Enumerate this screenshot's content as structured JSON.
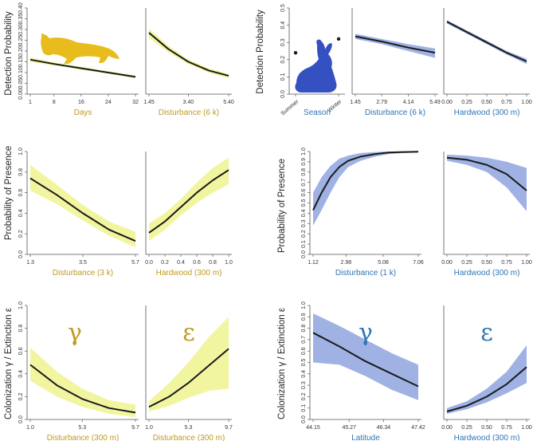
{
  "colors": {
    "marten_label": "#C09A20",
    "hare_label": "#2E75B6",
    "marten_band": "#F2F5A0",
    "hare_band": "#9FB2E3",
    "line": "#1A1A1A"
  },
  "ylabels": {
    "detection": "Detection Probability",
    "presence": "Probability of Presence",
    "colext": "Colonization γ / Extinction ε"
  },
  "greek": {
    "gamma": "γ",
    "epsilon": "ε"
  },
  "silhouettes": {
    "marten": "marten-silhouette",
    "hare": "hare-silhouette"
  },
  "chart_data": [
    {
      "id": "m_days",
      "type": "line",
      "species": "marten",
      "xlabel": "Days",
      "xlim": [
        1,
        32
      ],
      "ylim": [
        0,
        0.4
      ],
      "xticks": [
        1,
        8,
        16,
        24,
        32
      ],
      "xtick_labels": [
        "1",
        "8",
        "16",
        "24",
        "32"
      ],
      "yticks": [
        0,
        0.05,
        0.1,
        0.15,
        0.2,
        0.25,
        0.3,
        0.35,
        0.4
      ],
      "ytick_labels": [
        "0.00",
        "0.05",
        "0.10",
        "0.15",
        "0.20",
        "0.25",
        "0.30",
        "0.35",
        "0.40"
      ],
      "x": [
        1,
        8,
        16,
        24,
        32
      ],
      "y": [
        0.16,
        0.14,
        0.12,
        0.1,
        0.08
      ],
      "lower": [
        0.15,
        0.133,
        0.113,
        0.094,
        0.074
      ],
      "upper": [
        0.17,
        0.147,
        0.127,
        0.106,
        0.086
      ]
    },
    {
      "id": "m_dist6",
      "type": "line",
      "species": "marten",
      "xlabel": "Disturbance (6 k)",
      "xlim": [
        1.45,
        5.4
      ],
      "ylim": [
        0,
        0.4
      ],
      "xticks": [
        1.45,
        3.4,
        5.4
      ],
      "xtick_labels": [
        "1.45",
        "3.40",
        "5.40"
      ],
      "x": [
        1.45,
        2.4,
        3.4,
        4.4,
        5.4
      ],
      "y": [
        0.285,
        0.21,
        0.15,
        0.11,
        0.085
      ],
      "lower": [
        0.26,
        0.195,
        0.14,
        0.1,
        0.075
      ],
      "upper": [
        0.305,
        0.225,
        0.16,
        0.12,
        0.095
      ]
    },
    {
      "id": "h_season",
      "type": "scatter",
      "species": "hare",
      "xlabel": "Season",
      "ylim": [
        0,
        0.5
      ],
      "categories": [
        "Summer",
        "Winter"
      ],
      "yticks": [
        0,
        0.1,
        0.2,
        0.3,
        0.4,
        0.5
      ],
      "ytick_labels": [
        "0.0",
        "0.1",
        "0.2",
        "0.3",
        "0.4",
        "0.5"
      ],
      "values": [
        0.24,
        0.32
      ],
      "lower": [
        0.23,
        0.31
      ],
      "upper": [
        0.25,
        0.33
      ]
    },
    {
      "id": "h_dist6",
      "type": "line",
      "species": "hare",
      "xlabel": "Disturbance (6 k)",
      "xlim": [
        1.45,
        5.49
      ],
      "ylim": [
        0,
        0.5
      ],
      "xticks": [
        1.45,
        2.79,
        4.14,
        5.49
      ],
      "xtick_labels": [
        "1.45",
        "2.79",
        "4.14",
        "5.49"
      ],
      "x": [
        1.45,
        2.79,
        4.14,
        5.49
      ],
      "y": [
        0.335,
        0.305,
        0.27,
        0.24
      ],
      "lower": [
        0.32,
        0.29,
        0.25,
        0.21
      ],
      "upper": [
        0.35,
        0.32,
        0.29,
        0.265
      ]
    },
    {
      "id": "h_hard_det",
      "type": "line",
      "species": "hare",
      "xlabel": "Hardwood (300 m)",
      "xlim": [
        0,
        1
      ],
      "ylim": [
        0,
        0.5
      ],
      "xticks": [
        0,
        0.25,
        0.5,
        0.75,
        1
      ],
      "xtick_labels": [
        "0.00",
        "0.25",
        "0.50",
        "0.75",
        "1.00"
      ],
      "x": [
        0,
        0.25,
        0.5,
        0.75,
        1
      ],
      "y": [
        0.42,
        0.36,
        0.3,
        0.24,
        0.19
      ],
      "lower": [
        0.41,
        0.35,
        0.29,
        0.23,
        0.175
      ],
      "upper": [
        0.43,
        0.37,
        0.31,
        0.25,
        0.205
      ]
    },
    {
      "id": "m_dist3",
      "type": "line",
      "species": "marten",
      "xlabel": "Disturbance (3 k)",
      "xlim": [
        1.3,
        5.7
      ],
      "ylim": [
        0,
        1
      ],
      "xticks": [
        1.3,
        3.5,
        5.7
      ],
      "xtick_labels": [
        "1.3",
        "3.5",
        "5.7"
      ],
      "yticks": [
        0,
        0.2,
        0.4,
        0.6,
        0.8,
        1
      ],
      "ytick_labels": [
        "0.0",
        "0.2",
        "0.4",
        "0.6",
        "0.8",
        "1.0"
      ],
      "x": [
        1.3,
        2.4,
        3.5,
        4.6,
        5.7
      ],
      "y": [
        0.74,
        0.58,
        0.4,
        0.24,
        0.13
      ],
      "lower": [
        0.62,
        0.49,
        0.33,
        0.18,
        0.07
      ],
      "upper": [
        0.87,
        0.68,
        0.48,
        0.32,
        0.22
      ]
    },
    {
      "id": "m_hard_pres",
      "type": "line",
      "species": "marten",
      "xlabel": "Hardwood (300 m)",
      "xlim": [
        0,
        1
      ],
      "ylim": [
        0,
        1
      ],
      "xticks": [
        0,
        0.2,
        0.4,
        0.6,
        0.8,
        1
      ],
      "xtick_labels": [
        "0.0",
        "0.2",
        "0.4",
        "0.6",
        "0.8",
        "1.0"
      ],
      "x": [
        0,
        0.2,
        0.4,
        0.6,
        0.8,
        1
      ],
      "y": [
        0.21,
        0.32,
        0.46,
        0.6,
        0.72,
        0.82
      ],
      "lower": [
        0.13,
        0.24,
        0.38,
        0.5,
        0.6,
        0.68
      ],
      "upper": [
        0.3,
        0.4,
        0.54,
        0.7,
        0.84,
        0.94
      ]
    },
    {
      "id": "h_dist1",
      "type": "line",
      "species": "hare",
      "xlabel": "Disturbance (1 k)",
      "xlim": [
        1.12,
        7.06
      ],
      "ylim": [
        0,
        1
      ],
      "xticks": [
        1.12,
        2.98,
        5.08,
        7.06
      ],
      "xtick_labels": [
        "1.12",
        "2.98",
        "5.08",
        "7.06"
      ],
      "yticks": [
        0,
        0.1,
        0.2,
        0.3,
        0.4,
        0.5,
        0.6,
        0.7,
        0.8,
        0.9,
        1
      ],
      "ytick_labels": [
        "0.0",
        "0.1",
        "0.2",
        "0.3",
        "0.4",
        "0.5",
        "0.6",
        "0.7",
        "0.8",
        "0.9",
        "1.0"
      ],
      "x": [
        1.12,
        1.6,
        2.1,
        2.6,
        3.1,
        3.8,
        4.6,
        5.4,
        6.2,
        7.06
      ],
      "y": [
        0.43,
        0.6,
        0.75,
        0.85,
        0.91,
        0.95,
        0.975,
        0.99,
        0.995,
        0.998
      ],
      "lower": [
        0.28,
        0.43,
        0.6,
        0.75,
        0.85,
        0.91,
        0.95,
        0.975,
        0.985,
        0.99
      ],
      "upper": [
        0.6,
        0.75,
        0.86,
        0.93,
        0.96,
        0.985,
        0.995,
        1,
        1,
        1
      ]
    },
    {
      "id": "h_hard_pres",
      "type": "line",
      "species": "hare",
      "xlabel": "Hardwood (300 m)",
      "xlim": [
        0,
        1
      ],
      "ylim": [
        0,
        1
      ],
      "xticks": [
        0,
        0.25,
        0.5,
        0.75,
        1
      ],
      "xtick_labels": [
        "0.00",
        "0.25",
        "0.50",
        "0.75",
        "1.00"
      ],
      "x": [
        0,
        0.25,
        0.5,
        0.75,
        1
      ],
      "y": [
        0.94,
        0.92,
        0.87,
        0.78,
        0.62
      ],
      "lower": [
        0.91,
        0.87,
        0.8,
        0.65,
        0.42
      ],
      "upper": [
        0.97,
        0.96,
        0.94,
        0.9,
        0.84
      ]
    },
    {
      "id": "m_col",
      "type": "line",
      "species": "marten",
      "greek": "gamma",
      "xlabel": "Disturbance (300 m)",
      "xlim": [
        1,
        9.7
      ],
      "ylim": [
        0,
        1
      ],
      "xticks": [
        1,
        5.3,
        9.7
      ],
      "xtick_labels": [
        "1.0",
        "5.3",
        "9.7"
      ],
      "yticks": [
        0,
        0.2,
        0.4,
        0.6,
        0.8,
        1
      ],
      "ytick_labels": [
        "0.0",
        "0.2",
        "0.4",
        "0.6",
        "0.8",
        "1.0"
      ],
      "x": [
        1,
        3.2,
        5.3,
        7.5,
        9.7
      ],
      "y": [
        0.48,
        0.3,
        0.18,
        0.1,
        0.06
      ],
      "lower": [
        0.34,
        0.2,
        0.11,
        0.05,
        0.02
      ],
      "upper": [
        0.63,
        0.42,
        0.27,
        0.17,
        0.13
      ]
    },
    {
      "id": "m_ext",
      "type": "line",
      "species": "marten",
      "greek": "epsilon",
      "xlabel": "Disturbance (300 m)",
      "xlim": [
        1,
        9.7
      ],
      "ylim": [
        0,
        1
      ],
      "xticks": [
        1,
        5.3,
        9.7
      ],
      "xtick_labels": [
        "1.0",
        "5.3",
        "9.7"
      ],
      "x": [
        1,
        3.2,
        5.3,
        7.5,
        9.7
      ],
      "y": [
        0.11,
        0.2,
        0.32,
        0.47,
        0.62
      ],
      "lower": [
        0.07,
        0.12,
        0.19,
        0.25,
        0.27
      ],
      "upper": [
        0.16,
        0.32,
        0.5,
        0.72,
        0.9
      ]
    },
    {
      "id": "h_col",
      "type": "line",
      "species": "hare",
      "greek": "gamma",
      "xlabel": "Latitude",
      "xlim": [
        44.15,
        47.42
      ],
      "ylim": [
        0,
        1
      ],
      "xticks": [
        44.15,
        45.27,
        46.34,
        47.42
      ],
      "xtick_labels": [
        "44.15",
        "45.27",
        "46.34",
        "47.42"
      ],
      "yticks": [
        0,
        0.1,
        0.2,
        0.3,
        0.4,
        0.5,
        0.6,
        0.7,
        0.8,
        0.9,
        1
      ],
      "ytick_labels": [
        "0.0",
        "0.1",
        "0.2",
        "0.3",
        "0.4",
        "0.5",
        "0.6",
        "0.7",
        "0.8",
        "0.9",
        "1.0"
      ],
      "x": [
        44.15,
        44.97,
        45.78,
        46.6,
        47.42
      ],
      "y": [
        0.76,
        0.64,
        0.51,
        0.4,
        0.29
      ],
      "lower": [
        0.5,
        0.48,
        0.38,
        0.26,
        0.17
      ],
      "upper": [
        0.93,
        0.82,
        0.7,
        0.58,
        0.48
      ]
    },
    {
      "id": "h_ext",
      "type": "line",
      "species": "hare",
      "greek": "epsilon",
      "xlabel": "Hardwood (300 m)",
      "xlim": [
        0,
        1
      ],
      "ylim": [
        0,
        1
      ],
      "xticks": [
        0,
        0.25,
        0.5,
        0.75,
        1
      ],
      "xtick_labels": [
        "0.00",
        "0.25",
        "0.50",
        "0.75",
        "1.00"
      ],
      "x": [
        0,
        0.25,
        0.5,
        0.75,
        1
      ],
      "y": [
        0.07,
        0.12,
        0.2,
        0.31,
        0.46
      ],
      "lower": [
        0.05,
        0.09,
        0.15,
        0.23,
        0.32
      ],
      "upper": [
        0.1,
        0.16,
        0.27,
        0.42,
        0.65
      ]
    }
  ]
}
